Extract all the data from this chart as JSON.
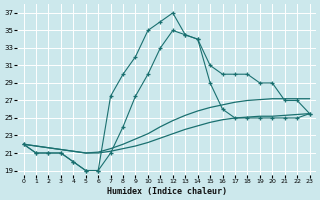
{
  "xlabel": "Humidex (Indice chaleur)",
  "background_color": "#cce8ec",
  "grid_color": "#ffffff",
  "line_color": "#1a7070",
  "xlim": [
    -0.5,
    23.5
  ],
  "ylim": [
    18.5,
    38
  ],
  "xticks": [
    0,
    1,
    2,
    3,
    4,
    5,
    6,
    7,
    8,
    9,
    10,
    11,
    12,
    13,
    14,
    15,
    16,
    17,
    18,
    19,
    20,
    21,
    22,
    23
  ],
  "yticks": [
    19,
    21,
    23,
    25,
    27,
    29,
    31,
    33,
    35,
    37
  ],
  "series_smooth1": {
    "x": [
      0,
      1,
      2,
      3,
      4,
      5,
      6,
      7,
      8,
      9,
      10,
      11,
      12,
      13,
      14,
      15,
      16,
      17,
      18,
      19,
      20,
      21,
      22,
      23
    ],
    "y": [
      22,
      21.8,
      21.6,
      21.4,
      21.2,
      21.0,
      21.0,
      21.2,
      21.5,
      21.8,
      22.2,
      22.7,
      23.2,
      23.7,
      24.1,
      24.5,
      24.8,
      25.0,
      25.1,
      25.2,
      25.2,
      25.3,
      25.4,
      25.5
    ]
  },
  "series_smooth2": {
    "x": [
      0,
      1,
      2,
      3,
      4,
      5,
      6,
      7,
      8,
      9,
      10,
      11,
      12,
      13,
      14,
      15,
      16,
      17,
      18,
      19,
      20,
      21,
      22,
      23
    ],
    "y": [
      22,
      21.8,
      21.6,
      21.4,
      21.2,
      21.0,
      21.1,
      21.5,
      22.0,
      22.6,
      23.2,
      24.0,
      24.7,
      25.3,
      25.8,
      26.2,
      26.5,
      26.8,
      27.0,
      27.1,
      27.2,
      27.2,
      27.2,
      27.2
    ]
  },
  "series_marked1_x": [
    0,
    1,
    2,
    3,
    4,
    5,
    6,
    7,
    8,
    9,
    10,
    11,
    12,
    13,
    14,
    15,
    16,
    17,
    18,
    19,
    20,
    21,
    22,
    23
  ],
  "series_marked1_y": [
    22,
    21,
    21,
    21,
    20,
    19,
    19,
    21,
    24,
    27.5,
    30,
    33,
    35,
    34.5,
    34,
    31,
    30,
    30,
    30,
    29,
    29,
    27,
    27,
    25.5
  ],
  "series_marked2_x": [
    0,
    1,
    2,
    3,
    4,
    5,
    6,
    7,
    8,
    9,
    10,
    11,
    12,
    13,
    14,
    15,
    16,
    17,
    18,
    19,
    20,
    21,
    22,
    23
  ],
  "series_marked2_y": [
    22,
    21,
    21,
    21,
    20,
    19,
    19,
    27.5,
    30,
    32,
    35,
    36,
    37,
    34.5,
    34,
    29,
    26,
    25,
    25,
    25,
    25,
    25,
    25,
    25.5
  ]
}
